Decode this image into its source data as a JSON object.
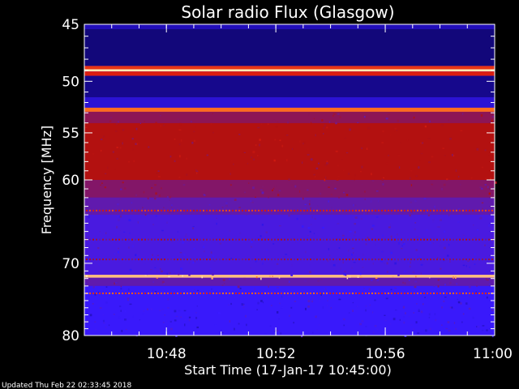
{
  "chart_data": {
    "type": "heatmap",
    "title": "Solar radio Flux (Glasgow)",
    "xlabel": "Start Time (17-Jan-17 10:45:00)",
    "ylabel": "Frequency [MHz]",
    "xlim": [
      "10:45",
      "11:00"
    ],
    "ylim": [
      45,
      80
    ],
    "y_ticks": [
      45,
      50,
      55,
      60,
      70,
      80
    ],
    "x_ticks": [
      "10:48",
      "10:52",
      "10:56",
      "11:00"
    ],
    "colormap": [
      "#000020",
      "#1a0aa0",
      "#3a1aff",
      "#6a1a9a",
      "#b01010",
      "#e02010",
      "#ff7020",
      "#ffe8b0"
    ],
    "bands": [
      {
        "from": 45.0,
        "to": 45.4,
        "level": 0.18
      },
      {
        "from": 45.4,
        "to": 48.6,
        "level": 0.1
      },
      {
        "from": 48.6,
        "to": 48.9,
        "level": 0.75
      },
      {
        "from": 48.9,
        "to": 49.1,
        "level": 1.0
      },
      {
        "from": 49.1,
        "to": 49.5,
        "level": 0.7
      },
      {
        "from": 49.5,
        "to": 51.5,
        "level": 0.12
      },
      {
        "from": 51.5,
        "to": 52.5,
        "level": 0.22
      },
      {
        "from": 52.5,
        "to": 52.9,
        "level": 0.85
      },
      {
        "from": 52.9,
        "to": 54.0,
        "level": 0.5
      },
      {
        "from": 54.0,
        "to": 60.0,
        "level": 0.58
      },
      {
        "from": 60.0,
        "to": 62.0,
        "level": 0.48
      },
      {
        "from": 62.0,
        "to": 64.0,
        "level": 0.4
      },
      {
        "from": 64.0,
        "to": 71.5,
        "level": 0.33
      },
      {
        "from": 71.5,
        "to": 71.9,
        "level": 0.95
      },
      {
        "from": 71.9,
        "to": 73.0,
        "level": 0.4
      },
      {
        "from": 73.0,
        "to": 80.0,
        "level": 0.28
      }
    ],
    "hot_lines": [
      {
        "freq": 63.5,
        "level": 0.72
      },
      {
        "freq": 67.0,
        "level": 0.52
      },
      {
        "freq": 69.5,
        "level": 0.5
      },
      {
        "freq": 74.0,
        "level": 0.78
      }
    ]
  },
  "footer": {
    "updated": "Updated Thu Feb 22 02:33:45 2018"
  }
}
